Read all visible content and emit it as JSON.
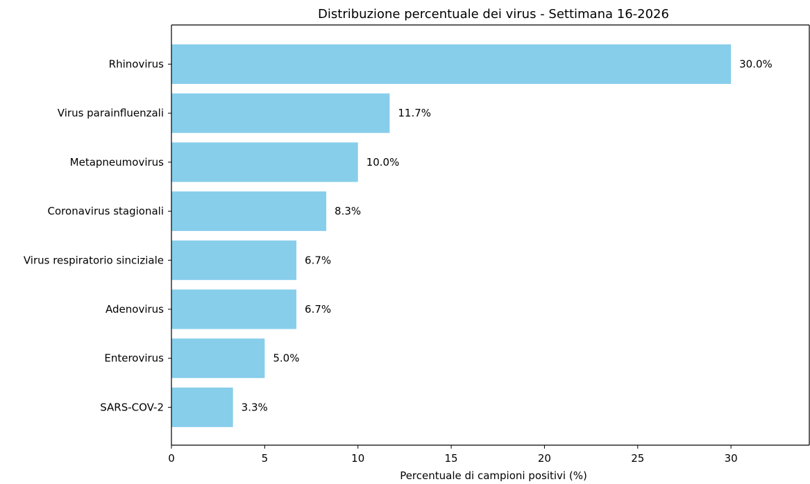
{
  "chart_data": {
    "type": "bar",
    "orientation": "horizontal",
    "title": "Distribuzione percentuale dei virus - Settimana 16-2026",
    "xlabel": "Percentuale di campioni positivi (%)",
    "ylabel": "",
    "categories": [
      "Rhinovirus",
      "Virus parainfluenzali",
      "Metapneumovirus",
      "Coronavirus stagionali",
      "Virus respiratorio sinciziale",
      "Adenovirus",
      "Enterovirus",
      "SARS-COV-2"
    ],
    "values": [
      30.0,
      11.7,
      10.0,
      8.3,
      6.7,
      6.7,
      5.0,
      3.3
    ],
    "data_labels": [
      "30.0%",
      "11.7%",
      "10.0%",
      "8.3%",
      "6.7%",
      "6.7%",
      "5.0%",
      "3.3%"
    ],
    "xlim": [
      0,
      34.2
    ],
    "xticks": [
      0,
      5,
      10,
      15,
      20,
      25,
      30
    ],
    "xtick_labels": [
      "0",
      "5",
      "10",
      "15",
      "20",
      "25",
      "30"
    ],
    "bar_color": "#87CEEB",
    "grid": false,
    "legend": "none"
  }
}
